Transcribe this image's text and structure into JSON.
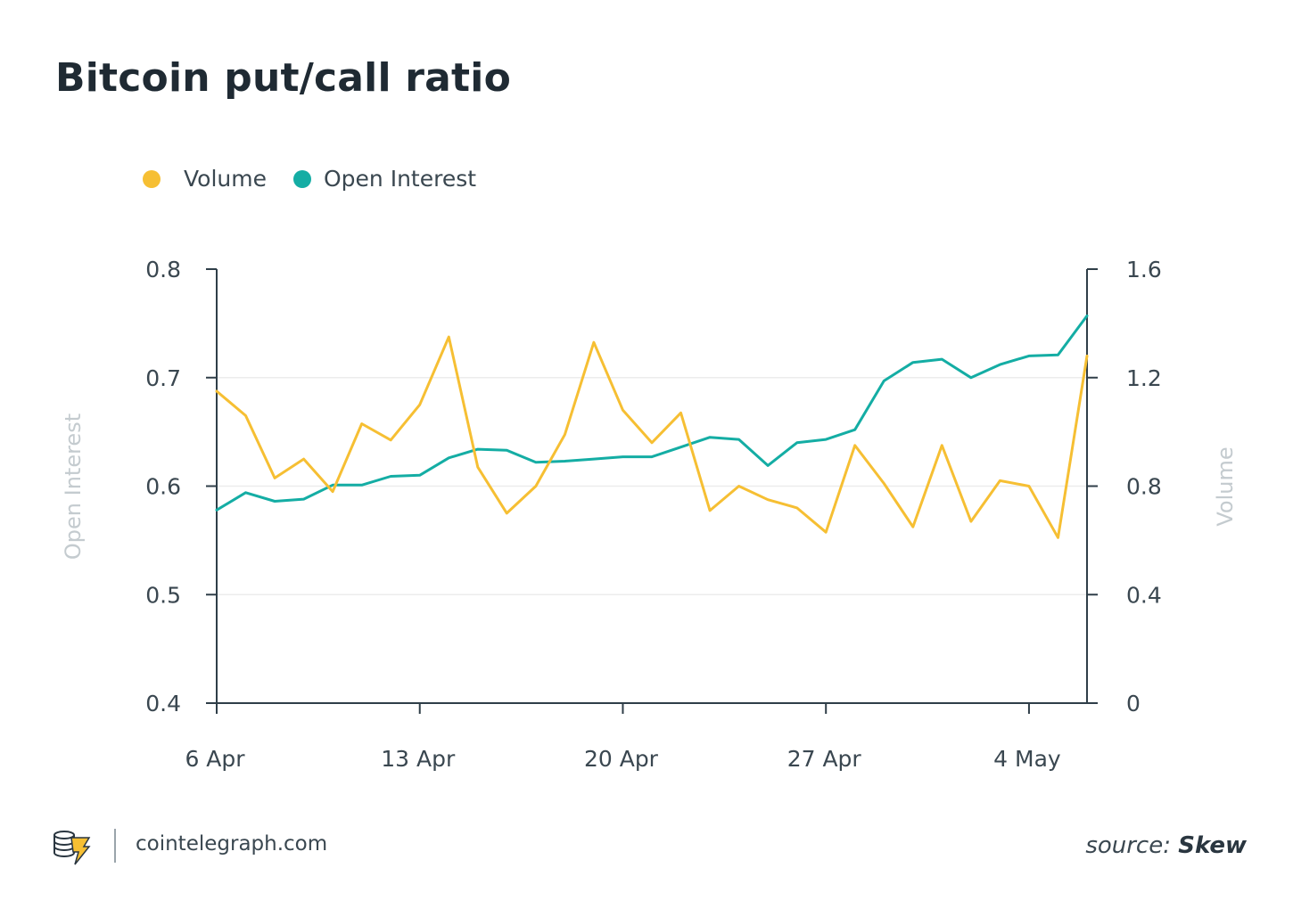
{
  "title": "Bitcoin put/call ratio",
  "legend": {
    "volume_label": "Volume",
    "oi_label": "Open Interest"
  },
  "colors": {
    "volume": "#f6bf33",
    "open_interest": "#14ada4",
    "axis": "#2f3e48",
    "grid": "#ececec",
    "axis_title": "#c4cbcf"
  },
  "footer": {
    "site": "cointelegraph.com",
    "source_prefix": "source:",
    "source_name": "Skew",
    "logo_icon": "cointelegraph-logo-icon"
  },
  "chart_data": {
    "type": "line",
    "x": [
      "6 Apr",
      "7 Apr",
      "8 Apr",
      "9 Apr",
      "10 Apr",
      "11 Apr",
      "12 Apr",
      "13 Apr",
      "14 Apr",
      "15 Apr",
      "16 Apr",
      "17 Apr",
      "18 Apr",
      "19 Apr",
      "20 Apr",
      "21 Apr",
      "22 Apr",
      "23 Apr",
      "24 Apr",
      "25 Apr",
      "26 Apr",
      "27 Apr",
      "28 Apr",
      "29 Apr",
      "30 Apr",
      "1 May",
      "2 May",
      "3 May",
      "4 May",
      "5 May",
      "6 May"
    ],
    "x_ticks": [
      "6 Apr",
      "13 Apr",
      "20 Apr",
      "27 Apr",
      "4 May"
    ],
    "left_axis": {
      "label": "Open Interest",
      "range": [
        0.4,
        0.8
      ],
      "ticks": [
        "0.4",
        "0.5",
        "0.6",
        "0.7",
        "0.8"
      ]
    },
    "right_axis": {
      "label": "Volume",
      "range": [
        0,
        1.6
      ],
      "ticks": [
        "0",
        "0.4",
        "0.8",
        "1.2",
        "1.6"
      ]
    },
    "series": [
      {
        "name": "Open Interest",
        "axis": "left",
        "values": [
          0.578,
          0.594,
          0.586,
          0.588,
          0.601,
          0.601,
          0.609,
          0.61,
          0.626,
          0.634,
          0.633,
          0.622,
          0.623,
          0.625,
          0.627,
          0.627,
          0.636,
          0.645,
          0.643,
          0.619,
          0.64,
          0.643,
          0.652,
          0.697,
          0.714,
          0.717,
          0.7,
          0.712,
          0.72,
          0.721,
          0.757
        ]
      },
      {
        "name": "Volume",
        "axis": "right",
        "values": [
          1.15,
          1.06,
          0.83,
          0.9,
          0.78,
          1.03,
          0.97,
          1.1,
          1.35,
          0.87,
          0.7,
          0.8,
          0.99,
          1.33,
          1.08,
          0.96,
          1.07,
          0.71,
          0.8,
          0.75,
          0.72,
          0.63,
          0.95,
          0.81,
          0.65,
          0.95,
          0.67,
          0.82,
          0.8,
          0.61,
          1.28
        ]
      }
    ]
  }
}
